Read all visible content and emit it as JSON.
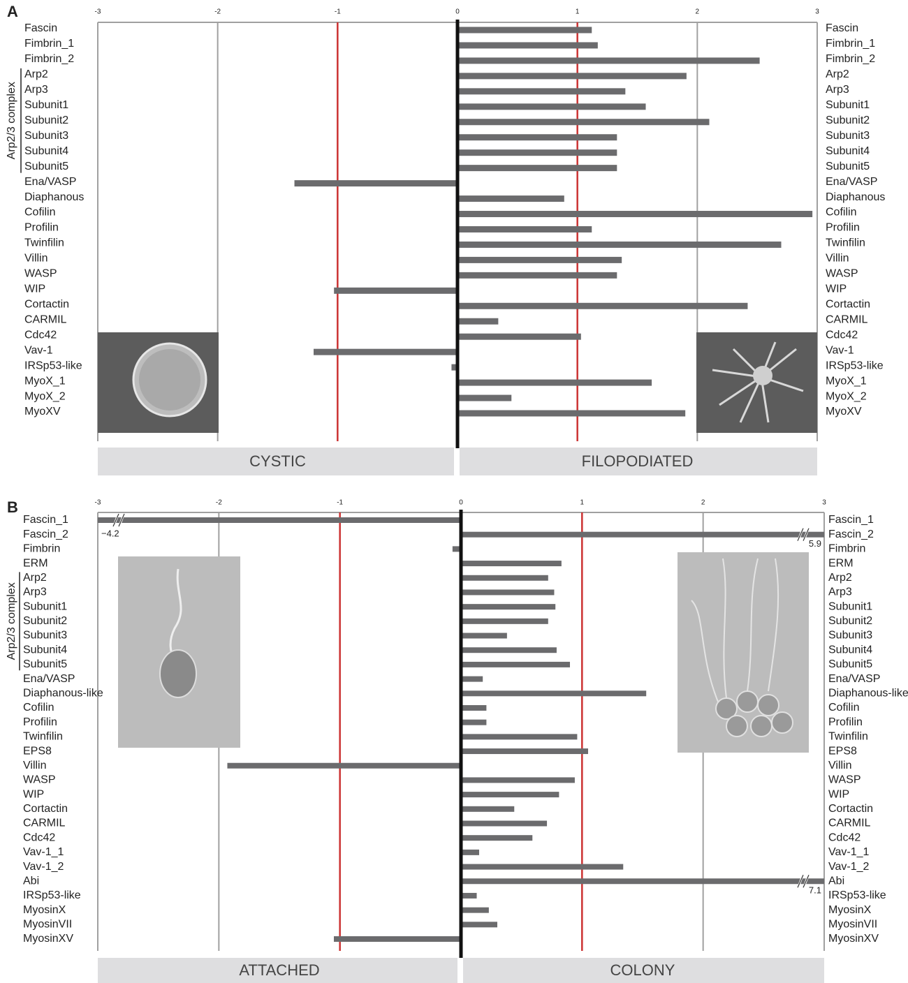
{
  "chart_data": [
    {
      "type": "bar",
      "orientation": "horizontal",
      "panel": "A",
      "categories": [
        "Fascin",
        "Fimbrin_1",
        "Fimbrin_2",
        "Arp2",
        "Arp3",
        "Subunit1",
        "Subunit2",
        "Subunit3",
        "Subunit4",
        "Subunit5",
        "Ena/VASP",
        "Diaphanous",
        "Cofilin",
        "Profilin",
        "Twinfilin",
        "Villin",
        "WASP",
        "WIP",
        "Cortactin",
        "CARMIL",
        "Cdc42",
        "Vav-1",
        "IRSp53-like",
        "MyoX_1",
        "MyoX_2",
        "MyoXV"
      ],
      "values": [
        1.12,
        1.17,
        2.52,
        1.91,
        1.4,
        1.57,
        2.1,
        1.33,
        1.33,
        1.33,
        -1.36,
        0.89,
        2.96,
        1.12,
        2.7,
        1.37,
        1.33,
        -1.03,
        2.42,
        0.34,
        1.03,
        -1.2,
        -0.05,
        1.62,
        0.45,
        1.9
      ],
      "color": "#6b6b6d",
      "xlim": [
        -3,
        3
      ],
      "xticks": [
        -3,
        -2,
        -1,
        0,
        1,
        2,
        3
      ],
      "reference_lines": [
        -1,
        1
      ],
      "reference_color": "#cc3333",
      "group": {
        "label": "Arp2/3 complex",
        "start": 3,
        "end": 9
      },
      "conditions": [
        "CYSTIC",
        "FILOPODIATED"
      ]
    },
    {
      "type": "bar",
      "orientation": "horizontal",
      "panel": "B",
      "categories": [
        "Fascin_1",
        "Fascin_2",
        "Fimbrin",
        "ERM",
        "Arp2",
        "Arp3",
        "Subunit1",
        "Subunit2",
        "Subunit3",
        "Subunit4",
        "Subunit5",
        "Ena/VASP",
        "Diaphanous-like",
        "Cofilin",
        "Profilin",
        "Twinfilin",
        "EPS8",
        "Villin",
        "WASP",
        "WIP",
        "Cortactin",
        "CARMIL",
        "Cdc42",
        "Vav-1_1",
        "Vav-1_2",
        "Abi",
        "IRSp53-like",
        "MyosinX",
        "MyosinVII",
        "MyosinXV"
      ],
      "values": [
        -4.2,
        5.9,
        -0.07,
        0.83,
        0.72,
        0.77,
        0.78,
        0.72,
        0.38,
        0.79,
        0.9,
        0.18,
        1.53,
        0.21,
        0.21,
        0.96,
        1.05,
        -1.93,
        0.94,
        0.81,
        0.44,
        0.71,
        0.59,
        0.15,
        1.34,
        7.1,
        0.13,
        0.23,
        0.3,
        -1.05
      ],
      "value_labels": [
        "−4.2",
        "5.9",
        null,
        null,
        null,
        null,
        null,
        null,
        null,
        null,
        null,
        null,
        null,
        null,
        null,
        null,
        null,
        null,
        null,
        null,
        null,
        null,
        null,
        null,
        null,
        "7.1",
        null,
        null,
        null,
        null
      ],
      "color": "#6b6b6d",
      "xlim": [
        -3,
        3
      ],
      "xticks": [
        -3,
        -2,
        -1,
        0,
        1,
        2,
        3
      ],
      "reference_lines": [
        -1,
        1
      ],
      "reference_color": "#cc3333",
      "group": {
        "label": "Arp2/3 complex",
        "start": 4,
        "end": 10
      },
      "conditions": [
        "ATTACHED",
        "COLONY"
      ]
    }
  ]
}
